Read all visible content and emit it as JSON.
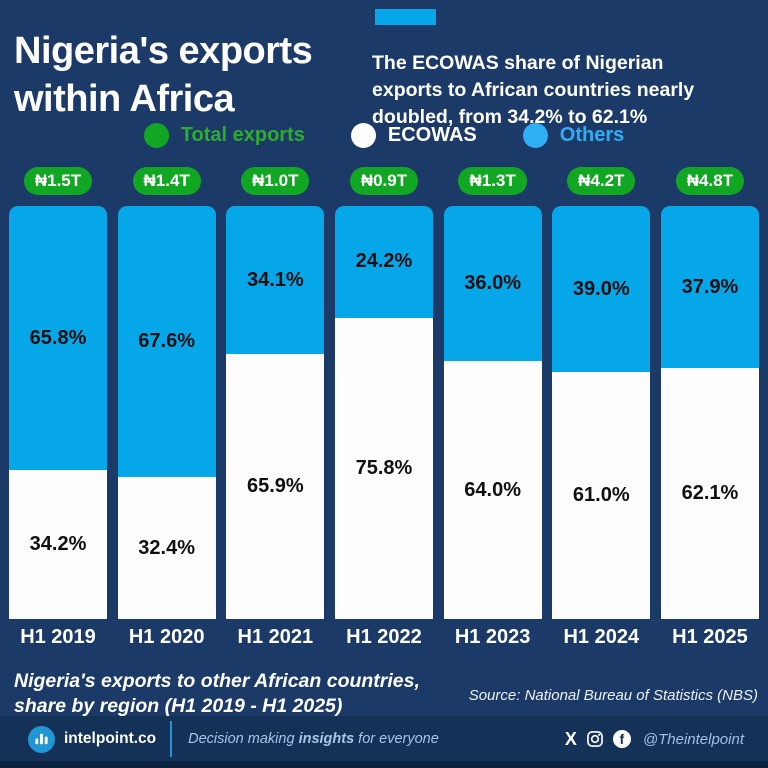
{
  "header": {
    "title_line1": "Nigeria's exports",
    "title_line2": "within Africa",
    "subtitle_line1": "The ECOWAS share of Nigerian",
    "subtitle_line2": "exports to African countries  nearly",
    "subtitle_line3": "doubled, from 34.2% to 62.1%"
  },
  "colors": {
    "background": "#1c3a68",
    "footer_bar": "#143158",
    "others_cyan": "#06a7e9",
    "ecowas_white": "#fdfdfe",
    "total_green": "#12a723",
    "legend_green_text": "#2dad2d",
    "legend_cyan": "#2fadf5",
    "value_label_dark": "#101010"
  },
  "legend": [
    {
      "label": "Total exports",
      "color": "#12a723",
      "text_color": "#2dad2d"
    },
    {
      "label": "ECOWAS",
      "color": "#ffffff",
      "text_color": "#ffffff"
    },
    {
      "label": "Others",
      "color": "#2fadf5",
      "text_color": "#2fadf5"
    }
  ],
  "chart_data": {
    "type": "bar",
    "stacked": true,
    "orientation": "vertical",
    "title": "Nigeria's exports within Africa",
    "unit": "%",
    "ylim": [
      0,
      100
    ],
    "grid": false,
    "legend_position": "top",
    "categories": [
      "H1 2019",
      "H1 2020",
      "H1 2021",
      "H1 2022",
      "H1 2023",
      "H1 2024",
      "H1 2025"
    ],
    "totals": [
      "₦1.5T",
      "₦1.4T",
      "₦1.0T",
      "₦0.9T",
      "₦1.3T",
      "₦4.2T",
      "₦4.8T"
    ],
    "series": [
      {
        "name": "Others",
        "color": "#06a7e9",
        "values": [
          65.8,
          67.6,
          34.1,
          24.2,
          36.0,
          39.0,
          37.9
        ]
      },
      {
        "name": "ECOWAS",
        "color": "#fdfdfe",
        "values": [
          34.2,
          32.4,
          65.9,
          75.8,
          64.0,
          61.0,
          62.1
        ]
      }
    ]
  },
  "caption": {
    "line1": "Nigeria's exports to other African countries,",
    "line2": "share by region (H1 2019 - H1 2025)"
  },
  "source": "Source: National Bureau of Statistics (NBS)",
  "footer": {
    "brand": "intelpoint.co",
    "tagline_pre": "Decision making ",
    "tagline_bold": "insights",
    "tagline_post": " for everyone",
    "x_glyph": "X",
    "fb_glyph": "f",
    "handle": "@Theintelpoint"
  }
}
